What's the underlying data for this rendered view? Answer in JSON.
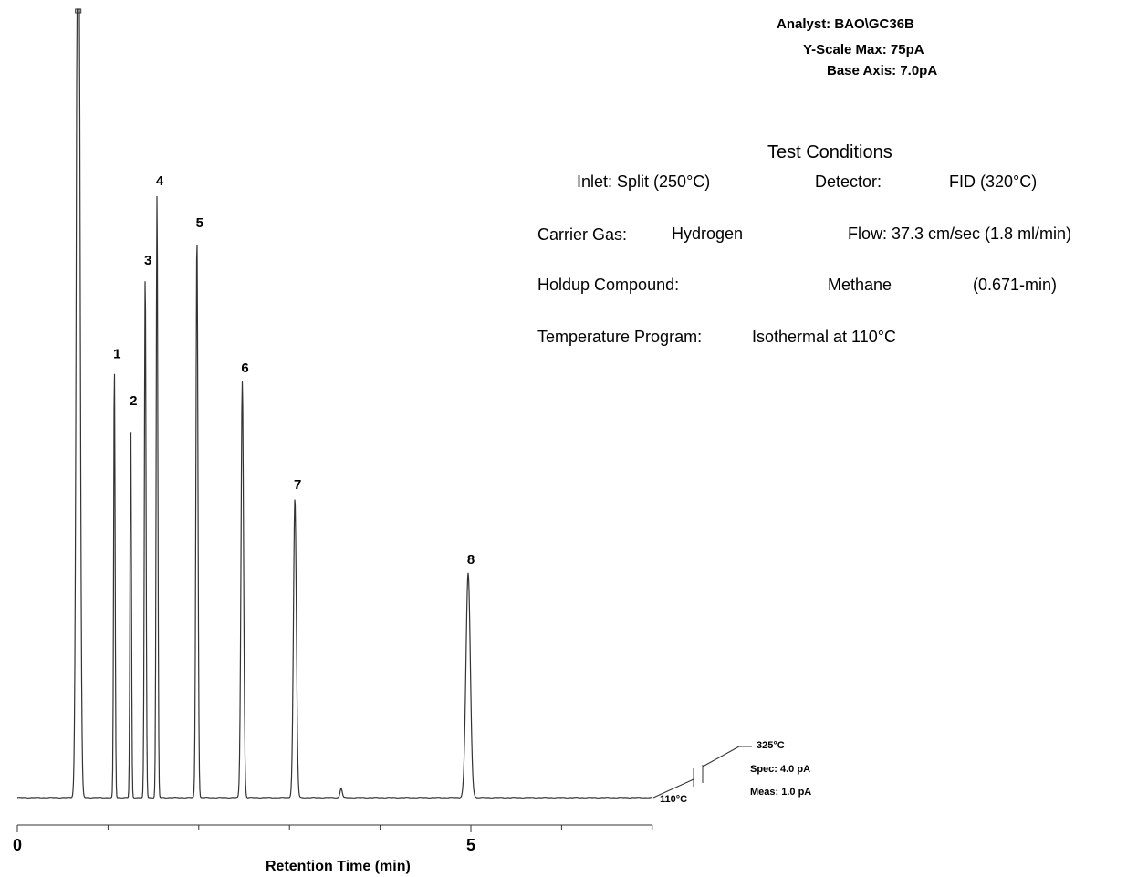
{
  "header": {
    "analyst": "Analyst: BAO\\GC36B",
    "y_scale": "Y-Scale Max: 75pA",
    "base_axis": "Base Axis:  7.0pA"
  },
  "conditions": {
    "title": "Test Conditions",
    "inlet_label": "Inlet:  Split  (250°C)",
    "detector_label": "Detector:",
    "detector_value": "FID (320°C)",
    "carrier_label": "Carrier Gas:",
    "carrier_value": "Hydrogen",
    "flow": "Flow: 37.3 cm/sec  (1.8 ml/min)",
    "holdup_label": "Holdup Compound:",
    "holdup_value": "Methane",
    "holdup_time": "(0.671-min)",
    "temp_label": "Temperature Program:",
    "temp_value": "Isothermal at 110°C"
  },
  "annotations": {
    "temp_start": "110°C",
    "temp_end": "325°C",
    "spec": "Spec: 4.0 pA",
    "meas": "Meas: 1.0 pA"
  },
  "chart_data": {
    "type": "line",
    "xlabel": "Retention Time (min)",
    "ylabel": "",
    "xlim": [
      0,
      7
    ],
    "ylim": [
      0,
      75
    ],
    "x_tick_labels": [
      {
        "x": 0,
        "label": "0"
      },
      {
        "x": 5,
        "label": "5"
      }
    ],
    "x_minor_ticks": [
      1,
      2,
      3,
      4,
      6,
      7
    ],
    "grid": false,
    "series": [
      {
        "peaks": [
          {
            "label": "",
            "x": 0.671,
            "height": 120,
            "width": 0.018
          },
          {
            "label": "1",
            "x": 1.07,
            "height": 46.0,
            "width": 0.008
          },
          {
            "label": "2",
            "x": 1.25,
            "height": 41.0,
            "width": 0.008
          },
          {
            "label": "3",
            "x": 1.41,
            "height": 56.0,
            "width": 0.009
          },
          {
            "label": "4",
            "x": 1.54,
            "height": 64.5,
            "width": 0.009
          },
          {
            "label": "5",
            "x": 1.98,
            "height": 60.0,
            "width": 0.011
          },
          {
            "label": "6",
            "x": 2.48,
            "height": 44.5,
            "width": 0.014
          },
          {
            "label": "7",
            "x": 3.06,
            "height": 32.0,
            "width": 0.016
          },
          {
            "label": "",
            "x": 3.57,
            "height": 1.0,
            "width": 0.012
          },
          {
            "label": "8",
            "x": 4.97,
            "height": 24.0,
            "width": 0.024
          }
        ]
      }
    ]
  }
}
